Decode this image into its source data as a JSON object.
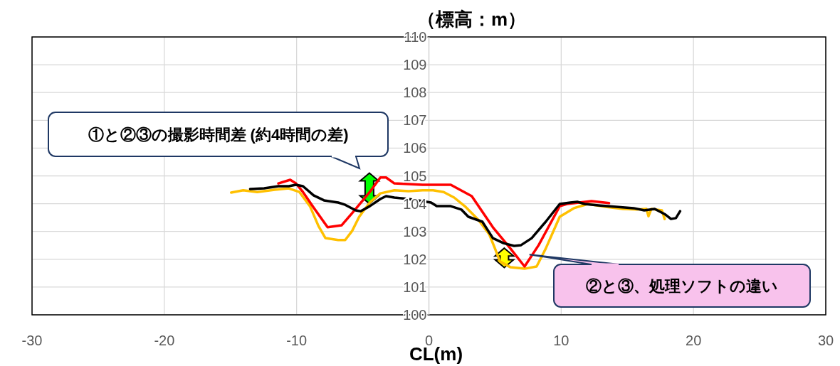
{
  "chart_data": {
    "type": "line",
    "ylabel": "（標高：m）",
    "xlabel": "CL(m)",
    "xlim": [
      -30,
      30
    ],
    "xticks": [
      -30,
      -20,
      -10,
      0,
      10,
      20,
      30
    ],
    "ylim": [
      100,
      110
    ],
    "yticks": [
      100,
      101,
      102,
      103,
      104,
      105,
      106,
      107,
      108,
      109,
      110
    ],
    "grid": true,
    "marker": "none",
    "line_style": "solid",
    "series": [
      {
        "color": "#ffc000",
        "x": [
          -14.95,
          -14.04,
          -12.98,
          -11.65,
          -10.59,
          -9.79,
          -8.99,
          -8.35,
          -7.82,
          -6.86,
          -6.33,
          -5.8,
          -5.27,
          -4.47,
          -3.67,
          -2.61,
          -1.54,
          -0.48,
          0.32,
          1.12,
          1.91,
          2.71,
          3.78,
          4.57,
          5.0,
          5.37,
          6.17,
          7.23,
          8.14,
          8.83,
          9.89,
          10.96,
          12.02,
          13.35,
          14.68,
          15.74,
          16.44,
          16.6,
          16.81,
          17.61,
          17.82
        ],
        "values": [
          104.4,
          104.48,
          104.42,
          104.5,
          104.55,
          104.42,
          103.91,
          103.2,
          102.76,
          102.69,
          102.69,
          103.02,
          103.53,
          104.04,
          104.37,
          104.48,
          104.45,
          104.48,
          104.48,
          104.42,
          104.22,
          103.91,
          103.4,
          102.89,
          102.38,
          101.92,
          101.71,
          101.66,
          101.74,
          102.38,
          103.53,
          103.84,
          103.99,
          103.89,
          103.81,
          103.79,
          103.81,
          103.55,
          103.81,
          103.76,
          103.45
        ]
      },
      {
        "color": "#ff0000",
        "x": [
          -11.38,
          -10.48,
          -10.05,
          -9.52,
          -8.72,
          -7.66,
          -6.6,
          -5.8,
          -4.47,
          -3.67,
          -3.24,
          -2.61,
          -0.48,
          1.65,
          3.24,
          4.84,
          6.17,
          7.23,
          8.3,
          9.89,
          10.43,
          12.29,
          13.62
        ],
        "values": [
          104.73,
          104.86,
          104.73,
          104.42,
          103.86,
          103.15,
          103.22,
          103.66,
          104.42,
          104.94,
          104.94,
          104.73,
          104.68,
          104.68,
          104.27,
          103.15,
          102.38,
          101.74,
          102.51,
          103.91,
          103.99,
          104.09,
          104.02
        ]
      },
      {
        "color": "#000000",
        "x": [
          -13.51,
          -12.45,
          -11.38,
          -10.59,
          -10.05,
          -9.52,
          -8.72,
          -7.93,
          -6.86,
          -6.33,
          -5.53,
          -5.16,
          -4.47,
          -3.67,
          -3.24,
          -2.61,
          -1.54,
          -0.48,
          0.16,
          0.59,
          1.65,
          2.45,
          2.98,
          4.04,
          4.84,
          5.64,
          6.44,
          6.97,
          7.77,
          8.83,
          9.89,
          10.69,
          11.22,
          11.76,
          12.82,
          14.15,
          15.48,
          16.28,
          17.07,
          17.87,
          18.3,
          18.67,
          18.99
        ],
        "values": [
          104.53,
          104.55,
          104.63,
          104.63,
          104.68,
          104.63,
          104.3,
          104.12,
          104.04,
          103.96,
          103.76,
          103.73,
          103.91,
          104.17,
          104.27,
          104.22,
          104.17,
          104.09,
          104.04,
          103.91,
          103.91,
          103.79,
          103.53,
          103.35,
          102.76,
          102.58,
          102.48,
          102.51,
          102.76,
          103.35,
          103.99,
          104.04,
          104.07,
          103.99,
          103.94,
          103.89,
          103.84,
          103.76,
          103.81,
          103.61,
          103.45,
          103.48,
          103.73
        ]
      }
    ],
    "annotations": [
      "①と②③の撮影時間差 (約4時間の差)",
      {
        "text": "②と③、処理ソフトの違い",
        "x": 7.6,
        "y": 102.17
      }
    ]
  }
}
